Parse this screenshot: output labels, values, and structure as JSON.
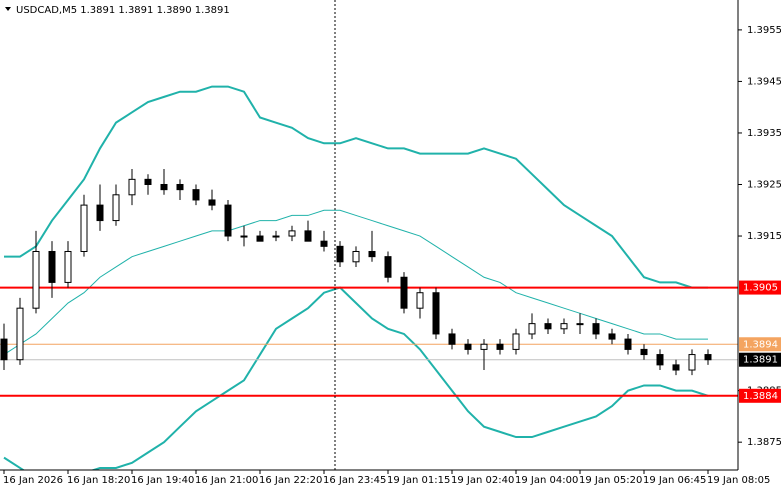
{
  "chart_data": {
    "type": "candlestick",
    "title": "USDCAD,M5  1.3891 1.3891 1.3890 1.3891",
    "categories": [
      "16 Jan 2026",
      null,
      null,
      null,
      "16 Jan 18:20",
      null,
      null,
      null,
      "16 Jan 19:40",
      null,
      null,
      null,
      "16 Jan 21:00",
      null,
      null,
      null,
      "16 Jan 22:20",
      null,
      null,
      null,
      "16 Jan 23:45",
      null,
      null,
      null,
      "19 Jan 01:15",
      null,
      null,
      null,
      "19 Jan 02:40",
      null,
      null,
      null,
      "19 Jan 04:00",
      null,
      null,
      null,
      "19 Jan 05:20",
      null,
      null,
      null,
      "19 Jan 06:45",
      null,
      null,
      null,
      "19 Jan 08:05"
    ],
    "open": [
      1.3895,
      1.3891,
      1.3901,
      1.3912,
      1.3906,
      1.3912,
      1.3921,
      1.3918,
      1.3923,
      1.3926,
      1.3925,
      1.3925,
      1.3924,
      1.3922,
      1.3921,
      1.3915,
      1.3915,
      1.3915,
      1.3915,
      1.3916,
      1.3914,
      1.3913,
      1.391,
      1.3912,
      1.3911,
      1.3907,
      1.3901,
      1.3904,
      1.3896,
      1.3894,
      1.3893,
      1.3894,
      1.3893,
      1.3896,
      1.3898,
      1.3897,
      1.3898,
      1.3898,
      1.3896,
      1.3895,
      1.3893,
      1.3892,
      1.389,
      1.3889,
      1.3892
    ],
    "high": [
      1.3898,
      1.3903,
      1.3916,
      1.3914,
      1.3914,
      1.3923,
      1.3925,
      1.3925,
      1.3928,
      1.3927,
      1.3928,
      1.3926,
      1.3925,
      1.3924,
      1.3922,
      1.3917,
      1.3916,
      1.3916,
      1.3917,
      1.3918,
      1.3916,
      1.3914,
      1.3913,
      1.3916,
      1.3912,
      1.3908,
      1.3905,
      1.3905,
      1.3897,
      1.3895,
      1.3895,
      1.3895,
      1.3897,
      1.39,
      1.3899,
      1.3899,
      1.39,
      1.3899,
      1.3897,
      1.3896,
      1.3894,
      1.3893,
      1.3891,
      1.3893,
      1.3893
    ],
    "low": [
      1.3889,
      1.389,
      1.39,
      1.3903,
      1.3905,
      1.3911,
      1.3916,
      1.3917,
      1.3921,
      1.3923,
      1.3923,
      1.3922,
      1.3921,
      1.392,
      1.3914,
      1.3913,
      1.3914,
      1.3914,
      1.3914,
      1.3914,
      1.3912,
      1.3909,
      1.3909,
      1.391,
      1.3906,
      1.39,
      1.3899,
      1.3895,
      1.3893,
      1.3892,
      1.3889,
      1.3892,
      1.3892,
      1.3895,
      1.3896,
      1.3896,
      1.3896,
      1.3895,
      1.3894,
      1.3892,
      1.3891,
      1.3889,
      1.3888,
      1.3888,
      1.389
    ],
    "close": [
      1.3891,
      1.3901,
      1.3912,
      1.3906,
      1.3912,
      1.3921,
      1.3918,
      1.3923,
      1.3926,
      1.3925,
      1.3924,
      1.3924,
      1.3922,
      1.3921,
      1.3915,
      1.3915,
      1.3914,
      1.3915,
      1.3916,
      1.3914,
      1.3913,
      1.391,
      1.3912,
      1.3911,
      1.3907,
      1.3901,
      1.3904,
      1.3896,
      1.3894,
      1.3893,
      1.3894,
      1.3893,
      1.3896,
      1.3898,
      1.3897,
      1.3898,
      1.3898,
      1.3896,
      1.3895,
      1.3893,
      1.3892,
      1.389,
      1.3889,
      1.3892,
      1.3891
    ],
    "candle_color": "#000000",
    "series": [
      {
        "color": "#20b2aa",
        "width": 2,
        "values": [
          1.3911,
          1.3911,
          1.3913,
          1.3918,
          1.3922,
          1.3926,
          1.3932,
          1.3937,
          1.3939,
          1.3941,
          1.3942,
          1.3943,
          1.3943,
          1.3944,
          1.3944,
          1.3943,
          1.3938,
          1.3937,
          1.3936,
          1.3934,
          1.3933,
          1.3933,
          1.3934,
          1.3933,
          1.3932,
          1.3932,
          1.3931,
          1.3931,
          1.3931,
          1.3931,
          1.3932,
          1.3931,
          1.393,
          1.3927,
          1.3924,
          1.3921,
          1.3919,
          1.3917,
          1.3915,
          1.3911,
          1.3907,
          1.3906,
          1.3906,
          1.3905,
          1.3905
        ]
      },
      {
        "color": "#20b2aa",
        "width": 1,
        "values": [
          1.3892,
          1.3894,
          1.3896,
          1.3899,
          1.3902,
          1.3904,
          1.3907,
          1.3909,
          1.3911,
          1.3912,
          1.3913,
          1.3914,
          1.3915,
          1.3916,
          1.3916,
          1.3917,
          1.3918,
          1.3918,
          1.3919,
          1.3919,
          1.392,
          1.392,
          1.3919,
          1.3918,
          1.3917,
          1.3916,
          1.3915,
          1.3913,
          1.3911,
          1.3909,
          1.3907,
          1.3906,
          1.3904,
          1.3903,
          1.3902,
          1.3901,
          1.39,
          1.3899,
          1.3898,
          1.3897,
          1.3896,
          1.3896,
          1.3895,
          1.3895,
          1.3895
        ]
      },
      {
        "color": "#20b2aa",
        "width": 2,
        "values": [
          1.3872,
          1.387,
          1.3868,
          1.3867,
          1.3867,
          1.3869,
          1.387,
          1.387,
          1.3871,
          1.3873,
          1.3875,
          1.3878,
          1.3881,
          1.3883,
          1.3885,
          1.3887,
          1.3892,
          1.3897,
          1.3899,
          1.3901,
          1.3904,
          1.3905,
          1.3902,
          1.3899,
          1.3897,
          1.3896,
          1.3893,
          1.3889,
          1.3885,
          1.3881,
          1.3878,
          1.3877,
          1.3876,
          1.3876,
          1.3877,
          1.3878,
          1.3879,
          1.388,
          1.3882,
          1.3885,
          1.3886,
          1.3886,
          1.3885,
          1.3885,
          1.3884
        ]
      }
    ],
    "ylim": [
      1.38696,
      1.39608
    ],
    "yticks": [
      1.3955,
      1.3945,
      1.3935,
      1.3925,
      1.3915,
      1.3885,
      1.3875
    ],
    "levels": [
      {
        "value": 1.3905,
        "color": "#ff0000",
        "width": 2
      },
      {
        "value": 1.3894,
        "color": "#f4a460",
        "width": 1
      },
      {
        "value": 1.3884,
        "color": "#ff0000",
        "width": 2
      }
    ],
    "bid": {
      "value": 1.3891,
      "color": "#c0c0c0",
      "label_color": "#000000"
    }
  }
}
